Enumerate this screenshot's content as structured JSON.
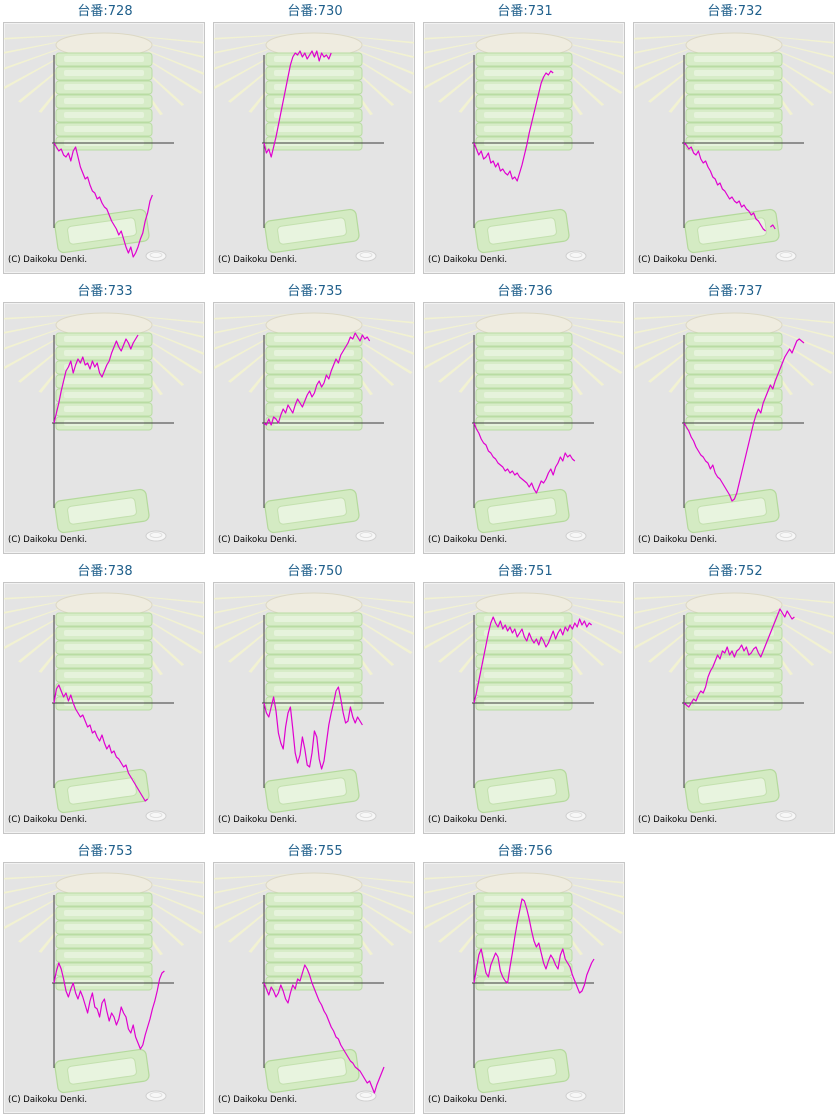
{
  "page": {
    "title_prefix": "台番:",
    "copyright": "(C) Daikoku Denki."
  },
  "colors": {
    "line": "#e000d0",
    "axis": "#3a3a3a",
    "title": "#1f5f8b",
    "panel": "#e4e4e4"
  },
  "chart_data": [
    {
      "type": "line",
      "title": "台番:728",
      "x": [
        0,
        0.02,
        0.04,
        0.06,
        0.08,
        0.1,
        0.12,
        0.14,
        0.16,
        0.18,
        0.2,
        0.22,
        0.24,
        0.26,
        0.28,
        0.3,
        0.32,
        0.34,
        0.36,
        0.38,
        0.4,
        0.42,
        0.44,
        0.46,
        0.48,
        0.5,
        0.52,
        0.54,
        0.56,
        0.58,
        0.6,
        0.62,
        0.64,
        0.66,
        0.68,
        0.7,
        0.72,
        0.74,
        0.76,
        0.78,
        0.8,
        0.82
      ],
      "y": [
        0,
        -4,
        -8,
        -6,
        -12,
        -14,
        -10,
        -18,
        -8,
        -4,
        -14,
        -24,
        -30,
        -36,
        -34,
        -42,
        -48,
        -50,
        -56,
        -54,
        -60,
        -64,
        -66,
        -72,
        -78,
        -82,
        -86,
        -92,
        -88,
        -96,
        -104,
        -110,
        -104,
        -114,
        -110,
        -104,
        -96,
        -90,
        -78,
        -70,
        -58,
        -52
      ]
    },
    {
      "type": "line",
      "title": "台番:730",
      "x": [
        0,
        0.02,
        0.04,
        0.06,
        0.08,
        0.1,
        0.12,
        0.14,
        0.16,
        0.18,
        0.2,
        0.22,
        0.24,
        0.26,
        0.28,
        0.3,
        0.32,
        0.34,
        0.36,
        0.38,
        0.4,
        0.42,
        0.44,
        0.46,
        0.48,
        0.5,
        0.52,
        0.54,
        0.56
      ],
      "y": [
        0,
        -10,
        -6,
        -14,
        -4,
        6,
        18,
        30,
        42,
        54,
        66,
        78,
        86,
        90,
        88,
        92,
        86,
        90,
        84,
        88,
        92,
        86,
        92,
        82,
        90,
        86,
        88,
        84,
        90
      ]
    },
    {
      "type": "line",
      "title": "台番:731",
      "x": [
        0,
        0.02,
        0.04,
        0.06,
        0.08,
        0.1,
        0.12,
        0.14,
        0.16,
        0.18,
        0.2,
        0.22,
        0.24,
        0.26,
        0.28,
        0.3,
        0.32,
        0.34,
        0.36,
        0.38,
        0.4,
        0.42,
        0.44,
        0.46,
        0.48,
        0.5,
        0.52,
        0.54,
        0.56,
        0.58,
        0.6,
        0.62,
        0.64,
        0.66
      ],
      "y": [
        0,
        -6,
        -12,
        -8,
        -16,
        -14,
        -10,
        -20,
        -18,
        -24,
        -20,
        -28,
        -26,
        -30,
        -32,
        -28,
        -36,
        -34,
        -38,
        -30,
        -22,
        -12,
        -2,
        10,
        20,
        30,
        40,
        50,
        60,
        66,
        70,
        68,
        72,
        70
      ]
    },
    {
      "type": "line",
      "title": "台番:732",
      "x": [
        0,
        0.02,
        0.04,
        0.06,
        0.08,
        0.1,
        0.12,
        0.14,
        0.16,
        0.18,
        0.2,
        0.22,
        0.24,
        0.26,
        0.28,
        0.3,
        0.32,
        0.34,
        0.36,
        0.38,
        0.4,
        0.42,
        0.44,
        0.46,
        0.48,
        0.5,
        0.52,
        0.54,
        0.56,
        0.58,
        0.6,
        0.62,
        0.64,
        0.66,
        0.68,
        0.7,
        0.72,
        0.74,
        0.76
      ],
      "y": [
        0,
        -2,
        -6,
        -4,
        -10,
        -12,
        -8,
        -16,
        -20,
        -18,
        -24,
        -28,
        -34,
        -36,
        -42,
        -40,
        -46,
        -48,
        -52,
        -56,
        -54,
        -58,
        -60,
        -58,
        -64,
        -62,
        -66,
        -68,
        -72,
        -70,
        -76,
        -78,
        -82,
        -86,
        -88,
        null,
        -84,
        -82,
        -86
      ]
    },
    {
      "type": "line",
      "title": "台番:733",
      "x": [
        0,
        0.02,
        0.04,
        0.06,
        0.08,
        0.1,
        0.12,
        0.14,
        0.16,
        0.18,
        0.2,
        0.22,
        0.24,
        0.26,
        0.28,
        0.3,
        0.32,
        0.34,
        0.36,
        0.38,
        0.4,
        0.42,
        0.44,
        0.46,
        0.48,
        0.5,
        0.52,
        0.54,
        0.56,
        0.58,
        0.6,
        0.62,
        0.64,
        0.66,
        0.68,
        0.7
      ],
      "y": [
        0,
        10,
        20,
        32,
        42,
        52,
        56,
        62,
        50,
        58,
        64,
        60,
        66,
        58,
        60,
        54,
        62,
        56,
        60,
        50,
        46,
        52,
        58,
        62,
        70,
        76,
        82,
        76,
        72,
        78,
        84,
        80,
        74,
        80,
        84,
        88
      ]
    },
    {
      "type": "line",
      "title": "台番:735",
      "x": [
        0,
        0.02,
        0.04,
        0.06,
        0.08,
        0.1,
        0.12,
        0.14,
        0.16,
        0.18,
        0.2,
        0.22,
        0.24,
        0.26,
        0.28,
        0.3,
        0.32,
        0.34,
        0.36,
        0.38,
        0.4,
        0.42,
        0.44,
        0.46,
        0.48,
        0.5,
        0.52,
        0.54,
        0.56,
        0.58,
        0.6,
        0.62,
        0.64,
        0.66,
        0.68,
        0.7,
        0.72,
        0.74,
        0.76,
        0.78,
        0.8,
        0.82,
        0.84,
        0.86,
        0.88
      ],
      "y": [
        0,
        -2,
        4,
        -2,
        6,
        4,
        0,
        8,
        14,
        10,
        18,
        14,
        10,
        18,
        24,
        20,
        16,
        22,
        28,
        32,
        26,
        30,
        38,
        42,
        36,
        40,
        48,
        44,
        52,
        58,
        64,
        60,
        68,
        72,
        76,
        80,
        86,
        84,
        90,
        86,
        82,
        88,
        84,
        86,
        82
      ]
    },
    {
      "type": "line",
      "title": "台番:736",
      "x": [
        0,
        0.02,
        0.04,
        0.06,
        0.08,
        0.1,
        0.12,
        0.14,
        0.16,
        0.18,
        0.2,
        0.22,
        0.24,
        0.26,
        0.28,
        0.3,
        0.32,
        0.34,
        0.36,
        0.38,
        0.4,
        0.42,
        0.44,
        0.46,
        0.48,
        0.5,
        0.52,
        0.54,
        0.56,
        0.58,
        0.6,
        0.62,
        0.64,
        0.66,
        0.68,
        0.7,
        0.72,
        0.74,
        0.76,
        0.78,
        0.8,
        0.82,
        0.84
      ],
      "y": [
        0,
        -6,
        -10,
        -16,
        -20,
        -22,
        -28,
        -30,
        -34,
        -36,
        -40,
        -42,
        -44,
        -48,
        -46,
        -50,
        -48,
        -52,
        -50,
        -54,
        -56,
        -58,
        -60,
        -64,
        -60,
        -66,
        -70,
        -64,
        -58,
        -60,
        -56,
        -50,
        -46,
        -52,
        -44,
        -40,
        -34,
        -38,
        -30,
        -34,
        -32,
        -36,
        -38
      ]
    },
    {
      "type": "line",
      "title": "台番:737",
      "x": [
        0,
        0.02,
        0.04,
        0.06,
        0.08,
        0.1,
        0.12,
        0.14,
        0.16,
        0.18,
        0.2,
        0.22,
        0.24,
        0.26,
        0.28,
        0.3,
        0.32,
        0.34,
        0.36,
        0.38,
        0.4,
        0.42,
        0.44,
        0.46,
        0.48,
        0.5,
        0.52,
        0.54,
        0.56,
        0.58,
        0.6,
        0.62,
        0.64,
        0.66,
        0.68,
        0.7,
        0.72,
        0.74,
        0.76,
        0.78,
        0.8,
        0.82,
        0.84,
        0.86,
        0.88,
        0.9,
        0.92,
        0.94,
        0.96,
        0.98,
        1.0
      ],
      "y": [
        0,
        -4,
        -8,
        -14,
        -18,
        -24,
        -28,
        -32,
        -34,
        -38,
        -40,
        -46,
        -42,
        -50,
        -54,
        -56,
        -60,
        -64,
        -68,
        -72,
        -78,
        -76,
        -70,
        -60,
        -50,
        -40,
        -30,
        -20,
        -10,
        0,
        8,
        14,
        10,
        20,
        26,
        32,
        38,
        34,
        42,
        48,
        54,
        60,
        66,
        70,
        74,
        70,
        76,
        82,
        84,
        82,
        80
      ]
    },
    {
      "type": "line",
      "title": "台番:738",
      "x": [
        0,
        0.02,
        0.04,
        0.06,
        0.08,
        0.1,
        0.12,
        0.14,
        0.16,
        0.18,
        0.2,
        0.22,
        0.24,
        0.26,
        0.28,
        0.3,
        0.32,
        0.34,
        0.36,
        0.38,
        0.4,
        0.42,
        0.44,
        0.46,
        0.48,
        0.5,
        0.52,
        0.54,
        0.56,
        0.58,
        0.6,
        0.62,
        0.64,
        0.66,
        0.68,
        0.7,
        0.72,
        0.74,
        0.76,
        0.78
      ],
      "y": [
        0,
        14,
        18,
        12,
        6,
        10,
        2,
        8,
        0,
        -6,
        -10,
        -14,
        -12,
        -18,
        -24,
        -22,
        -30,
        -28,
        -34,
        -38,
        -32,
        -40,
        -46,
        -42,
        -50,
        -48,
        -54,
        -56,
        -60,
        -64,
        -62,
        -70,
        -74,
        -78,
        -82,
        -86,
        -90,
        -94,
        -98,
        -96
      ]
    },
    {
      "type": "line",
      "title": "台番:750",
      "x": [
        0,
        0.02,
        0.04,
        0.06,
        0.08,
        0.1,
        0.12,
        0.14,
        0.16,
        0.18,
        0.2,
        0.22,
        0.24,
        0.26,
        0.28,
        0.3,
        0.32,
        0.34,
        0.36,
        0.38,
        0.4,
        0.42,
        0.44,
        0.46,
        0.48,
        0.5,
        0.52,
        0.54,
        0.56,
        0.58,
        0.6,
        0.62,
        0.64,
        0.66,
        0.68,
        0.7,
        0.72,
        0.74,
        0.76,
        0.78,
        0.8,
        0.82
      ],
      "y": [
        0,
        -10,
        -14,
        -4,
        6,
        -8,
        -30,
        -40,
        -46,
        -24,
        -10,
        -4,
        -26,
        -50,
        -60,
        -52,
        -34,
        -46,
        -62,
        -64,
        -50,
        -28,
        -34,
        -56,
        -66,
        -58,
        -40,
        -22,
        -10,
        0,
        12,
        16,
        4,
        -10,
        -20,
        -18,
        -4,
        -14,
        -20,
        -14,
        -18,
        -22
      ]
    },
    {
      "type": "line",
      "title": "台番:751",
      "x": [
        0,
        0.02,
        0.04,
        0.06,
        0.08,
        0.1,
        0.12,
        0.14,
        0.16,
        0.18,
        0.2,
        0.22,
        0.24,
        0.26,
        0.28,
        0.3,
        0.32,
        0.34,
        0.36,
        0.38,
        0.4,
        0.42,
        0.44,
        0.46,
        0.48,
        0.5,
        0.52,
        0.54,
        0.56,
        0.58,
        0.6,
        0.62,
        0.64,
        0.66,
        0.68,
        0.7,
        0.72,
        0.74,
        0.76,
        0.78,
        0.8,
        0.82,
        0.84,
        0.86,
        0.88,
        0.9,
        0.92,
        0.94,
        0.96,
        0.98
      ],
      "y": [
        0,
        10,
        22,
        34,
        46,
        58,
        70,
        80,
        86,
        80,
        76,
        82,
        74,
        78,
        72,
        76,
        70,
        74,
        66,
        70,
        74,
        66,
        62,
        70,
        64,
        60,
        64,
        58,
        66,
        62,
        56,
        60,
        66,
        72,
        64,
        70,
        74,
        68,
        76,
        72,
        78,
        74,
        80,
        76,
        84,
        78,
        82,
        76,
        80,
        78
      ]
    },
    {
      "type": "line",
      "title": "台番:752",
      "x": [
        0,
        0.02,
        0.04,
        0.06,
        0.08,
        0.1,
        0.12,
        0.14,
        0.16,
        0.18,
        0.2,
        0.22,
        0.24,
        0.26,
        0.28,
        0.3,
        0.32,
        0.34,
        0.36,
        0.38,
        0.4,
        0.42,
        0.44,
        0.46,
        0.48,
        0.5,
        0.52,
        0.54,
        0.56,
        0.58,
        0.6,
        0.62,
        0.64,
        0.66,
        0.68,
        0.7,
        0.72,
        0.74,
        0.76,
        0.78,
        0.8,
        0.82,
        0.84,
        0.86,
        0.88,
        0.9,
        0.92
      ],
      "y": [
        0,
        -2,
        -4,
        0,
        4,
        2,
        8,
        12,
        10,
        16,
        26,
        32,
        36,
        42,
        48,
        44,
        52,
        50,
        56,
        48,
        52,
        46,
        52,
        54,
        58,
        52,
        56,
        48,
        50,
        54,
        56,
        50,
        46,
        52,
        58,
        64,
        70,
        76,
        82,
        88,
        94,
        90,
        86,
        92,
        88,
        84,
        86
      ]
    },
    {
      "type": "line",
      "title": "台番:753",
      "x": [
        0,
        0.02,
        0.04,
        0.06,
        0.08,
        0.1,
        0.12,
        0.14,
        0.16,
        0.18,
        0.2,
        0.22,
        0.24,
        0.26,
        0.28,
        0.3,
        0.32,
        0.34,
        0.36,
        0.38,
        0.4,
        0.42,
        0.44,
        0.46,
        0.48,
        0.5,
        0.52,
        0.54,
        0.56,
        0.58,
        0.6,
        0.62,
        0.64,
        0.66,
        0.68,
        0.7,
        0.72,
        0.74,
        0.76,
        0.78,
        0.8,
        0.82,
        0.84,
        0.86,
        0.88,
        0.9,
        0.92
      ],
      "y": [
        0,
        12,
        20,
        14,
        4,
        -8,
        -14,
        -6,
        0,
        -10,
        -16,
        -8,
        -14,
        -22,
        -30,
        -18,
        -10,
        -24,
        -26,
        -34,
        -20,
        -16,
        -28,
        -38,
        -30,
        -34,
        -42,
        -36,
        -24,
        -30,
        -34,
        -46,
        -50,
        -42,
        -54,
        -60,
        -66,
        -62,
        -52,
        -44,
        -36,
        -26,
        -18,
        -8,
        4,
        10,
        12
      ]
    },
    {
      "type": "line",
      "title": "台番:755",
      "x": [
        0,
        0.02,
        0.04,
        0.06,
        0.08,
        0.1,
        0.12,
        0.14,
        0.16,
        0.18,
        0.2,
        0.22,
        0.24,
        0.26,
        0.28,
        0.3,
        0.32,
        0.34,
        0.36,
        0.38,
        0.4,
        0.42,
        0.44,
        0.46,
        0.48,
        0.5,
        0.52,
        0.54,
        0.56,
        0.58,
        0.6,
        0.62,
        0.64,
        0.66,
        0.68,
        0.7,
        0.72,
        0.74,
        0.76,
        0.78,
        0.8,
        0.82,
        0.84,
        0.86,
        0.88,
        0.9,
        0.92,
        0.94,
        0.96,
        0.98,
        1.0
      ],
      "y": [
        0,
        -6,
        -12,
        -4,
        -8,
        -14,
        -10,
        -2,
        -8,
        -16,
        -20,
        -10,
        -2,
        -6,
        4,
        2,
        10,
        18,
        14,
        8,
        0,
        -6,
        -12,
        -18,
        -22,
        -28,
        -32,
        -38,
        -44,
        -48,
        -54,
        -56,
        -62,
        -66,
        -70,
        -74,
        -78,
        -80,
        -84,
        -86,
        -88,
        -92,
        -96,
        -100,
        -98,
        -104,
        -110,
        -102,
        -96,
        -90,
        -84
      ]
    },
    {
      "type": "line",
      "title": "台番:756",
      "x": [
        0,
        0.02,
        0.04,
        0.06,
        0.08,
        0.1,
        0.12,
        0.14,
        0.16,
        0.18,
        0.2,
        0.22,
        0.24,
        0.26,
        0.28,
        0.3,
        0.32,
        0.34,
        0.36,
        0.38,
        0.4,
        0.42,
        0.44,
        0.46,
        0.48,
        0.5,
        0.52,
        0.54,
        0.56,
        0.58,
        0.6,
        0.62,
        0.64,
        0.66,
        0.68,
        0.7,
        0.72,
        0.74,
        0.76,
        0.78,
        0.8,
        0.82,
        0.84,
        0.86,
        0.88,
        0.9,
        0.92,
        0.94,
        0.96,
        0.98,
        1.0
      ],
      "y": [
        0,
        14,
        28,
        34,
        22,
        10,
        6,
        18,
        24,
        30,
        26,
        12,
        6,
        2,
        0,
        16,
        30,
        46,
        60,
        72,
        84,
        82,
        74,
        64,
        52,
        42,
        36,
        40,
        30,
        20,
        14,
        22,
        28,
        24,
        18,
        14,
        28,
        34,
        24,
        20,
        16,
        8,
        2,
        -4,
        -10,
        -8,
        -2,
        8,
        14,
        20,
        24
      ]
    }
  ]
}
